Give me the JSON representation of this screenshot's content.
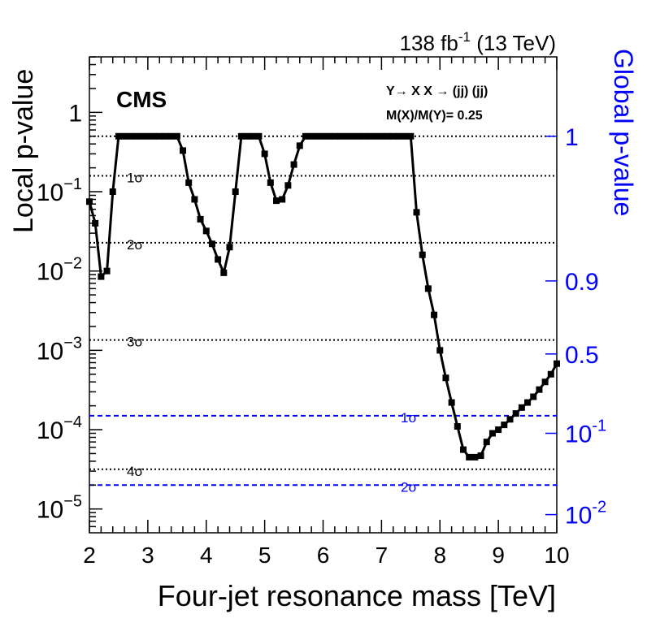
{
  "chart_data": {
    "type": "line",
    "header_right": {
      "pre": "138 fb",
      "sup": "-1",
      "post": " (13 TeV)"
    },
    "logo": "CMS",
    "annotation": {
      "line1_parts": [
        "Y",
        "→",
        " X X ",
        " →",
        " (jj) (jj)"
      ],
      "line2": "M(X)/M(Y)= 0.25"
    },
    "xlabel": "Four-jet resonance mass [TeV]",
    "ylabel": "Local p-value",
    "ylabel_right": "Global p-value",
    "xlim": [
      2,
      10
    ],
    "ylim_log10": [
      -5.3,
      0.7
    ],
    "x_ticks": [
      "2",
      "3",
      "4",
      "5",
      "6",
      "7",
      "8",
      "9",
      "10"
    ],
    "y_ticks": [
      {
        "value": 1,
        "label": "1"
      },
      {
        "value": 0.1,
        "base": "10",
        "exp": "−1"
      },
      {
        "value": 0.01,
        "base": "10",
        "exp": "−2"
      },
      {
        "value": 0.001,
        "base": "10",
        "exp": "−3"
      },
      {
        "value": 0.0001,
        "base": "10",
        "exp": "−4"
      },
      {
        "value": 1e-05,
        "base": "10",
        "exp": "−5"
      }
    ],
    "right_ticks": [
      {
        "local": 0.5,
        "label": "1"
      },
      {
        "local": 0.0075,
        "label": "0.9"
      },
      {
        "local": 0.0009,
        "label": "0.5"
      },
      {
        "local": 9e-05,
        "base": "10",
        "exp": "-1"
      },
      {
        "local": 8.5e-06,
        "base": "10",
        "exp": "-2"
      }
    ],
    "local_sigma_lines": [
      {
        "label": "1σ",
        "p": 0.1587
      },
      {
        "label": "2σ",
        "p": 0.02275
      },
      {
        "label": "3σ",
        "p": 0.00135
      },
      {
        "label": "4σ",
        "p": 3.17e-05
      }
    ],
    "local_reference_p": 0.5,
    "global_sigma_lines": [
      {
        "label": "1σ",
        "p": 0.00015
      },
      {
        "label": "2σ",
        "p": 2e-05
      }
    ],
    "series": [
      {
        "x": [
          2.0,
          2.1,
          2.2,
          2.3,
          2.4,
          2.5,
          2.6,
          2.7,
          2.8,
          2.9,
          3.0,
          3.1,
          3.2,
          3.3,
          3.4,
          3.5,
          3.6,
          3.7,
          3.8,
          3.9,
          4.0,
          4.1,
          4.2,
          4.3,
          4.4,
          4.5,
          4.6,
          4.7,
          4.8,
          4.9,
          5.0,
          5.1,
          5.2,
          5.3,
          5.4,
          5.5,
          5.6,
          5.7,
          5.8,
          5.9,
          6.0,
          6.1,
          6.2,
          6.3,
          6.4,
          6.5,
          6.6,
          6.7,
          6.8,
          6.9,
          7.0,
          7.1,
          7.2,
          7.3,
          7.4,
          7.5,
          7.6,
          7.7,
          7.8,
          7.9,
          8.0,
          8.1,
          8.2,
          8.3,
          8.4,
          8.5,
          8.6,
          8.7,
          8.8,
          8.9,
          9.0,
          9.1,
          9.2,
          9.3,
          9.4,
          9.5,
          9.6,
          9.7,
          9.8,
          9.9,
          10.0
        ],
        "y": [
          0.075,
          0.04,
          0.0085,
          0.01,
          0.1,
          0.5,
          0.5,
          0.5,
          0.5,
          0.5,
          0.5,
          0.5,
          0.5,
          0.5,
          0.5,
          0.5,
          0.33,
          0.13,
          0.08,
          0.045,
          0.032,
          0.022,
          0.014,
          0.0095,
          0.02,
          0.1,
          0.5,
          0.5,
          0.5,
          0.5,
          0.3,
          0.13,
          0.077,
          0.08,
          0.12,
          0.22,
          0.38,
          0.5,
          0.5,
          0.5,
          0.5,
          0.5,
          0.5,
          0.5,
          0.5,
          0.5,
          0.5,
          0.5,
          0.5,
          0.5,
          0.5,
          0.5,
          0.5,
          0.5,
          0.5,
          0.5,
          0.055,
          0.016,
          0.006,
          0.0028,
          0.001,
          0.00045,
          0.00022,
          0.00011,
          5.6e-05,
          4.5e-05,
          4.5e-05,
          4.7e-05,
          7e-05,
          9e-05,
          0.0001,
          0.000115,
          0.000135,
          0.00016,
          0.00019,
          0.00022,
          0.00026,
          0.00032,
          0.0004,
          0.0005,
          0.00068
        ]
      }
    ],
    "colors": {
      "main": "#000000",
      "global": "#0000ff"
    },
    "grid": false,
    "log_y": true
  }
}
